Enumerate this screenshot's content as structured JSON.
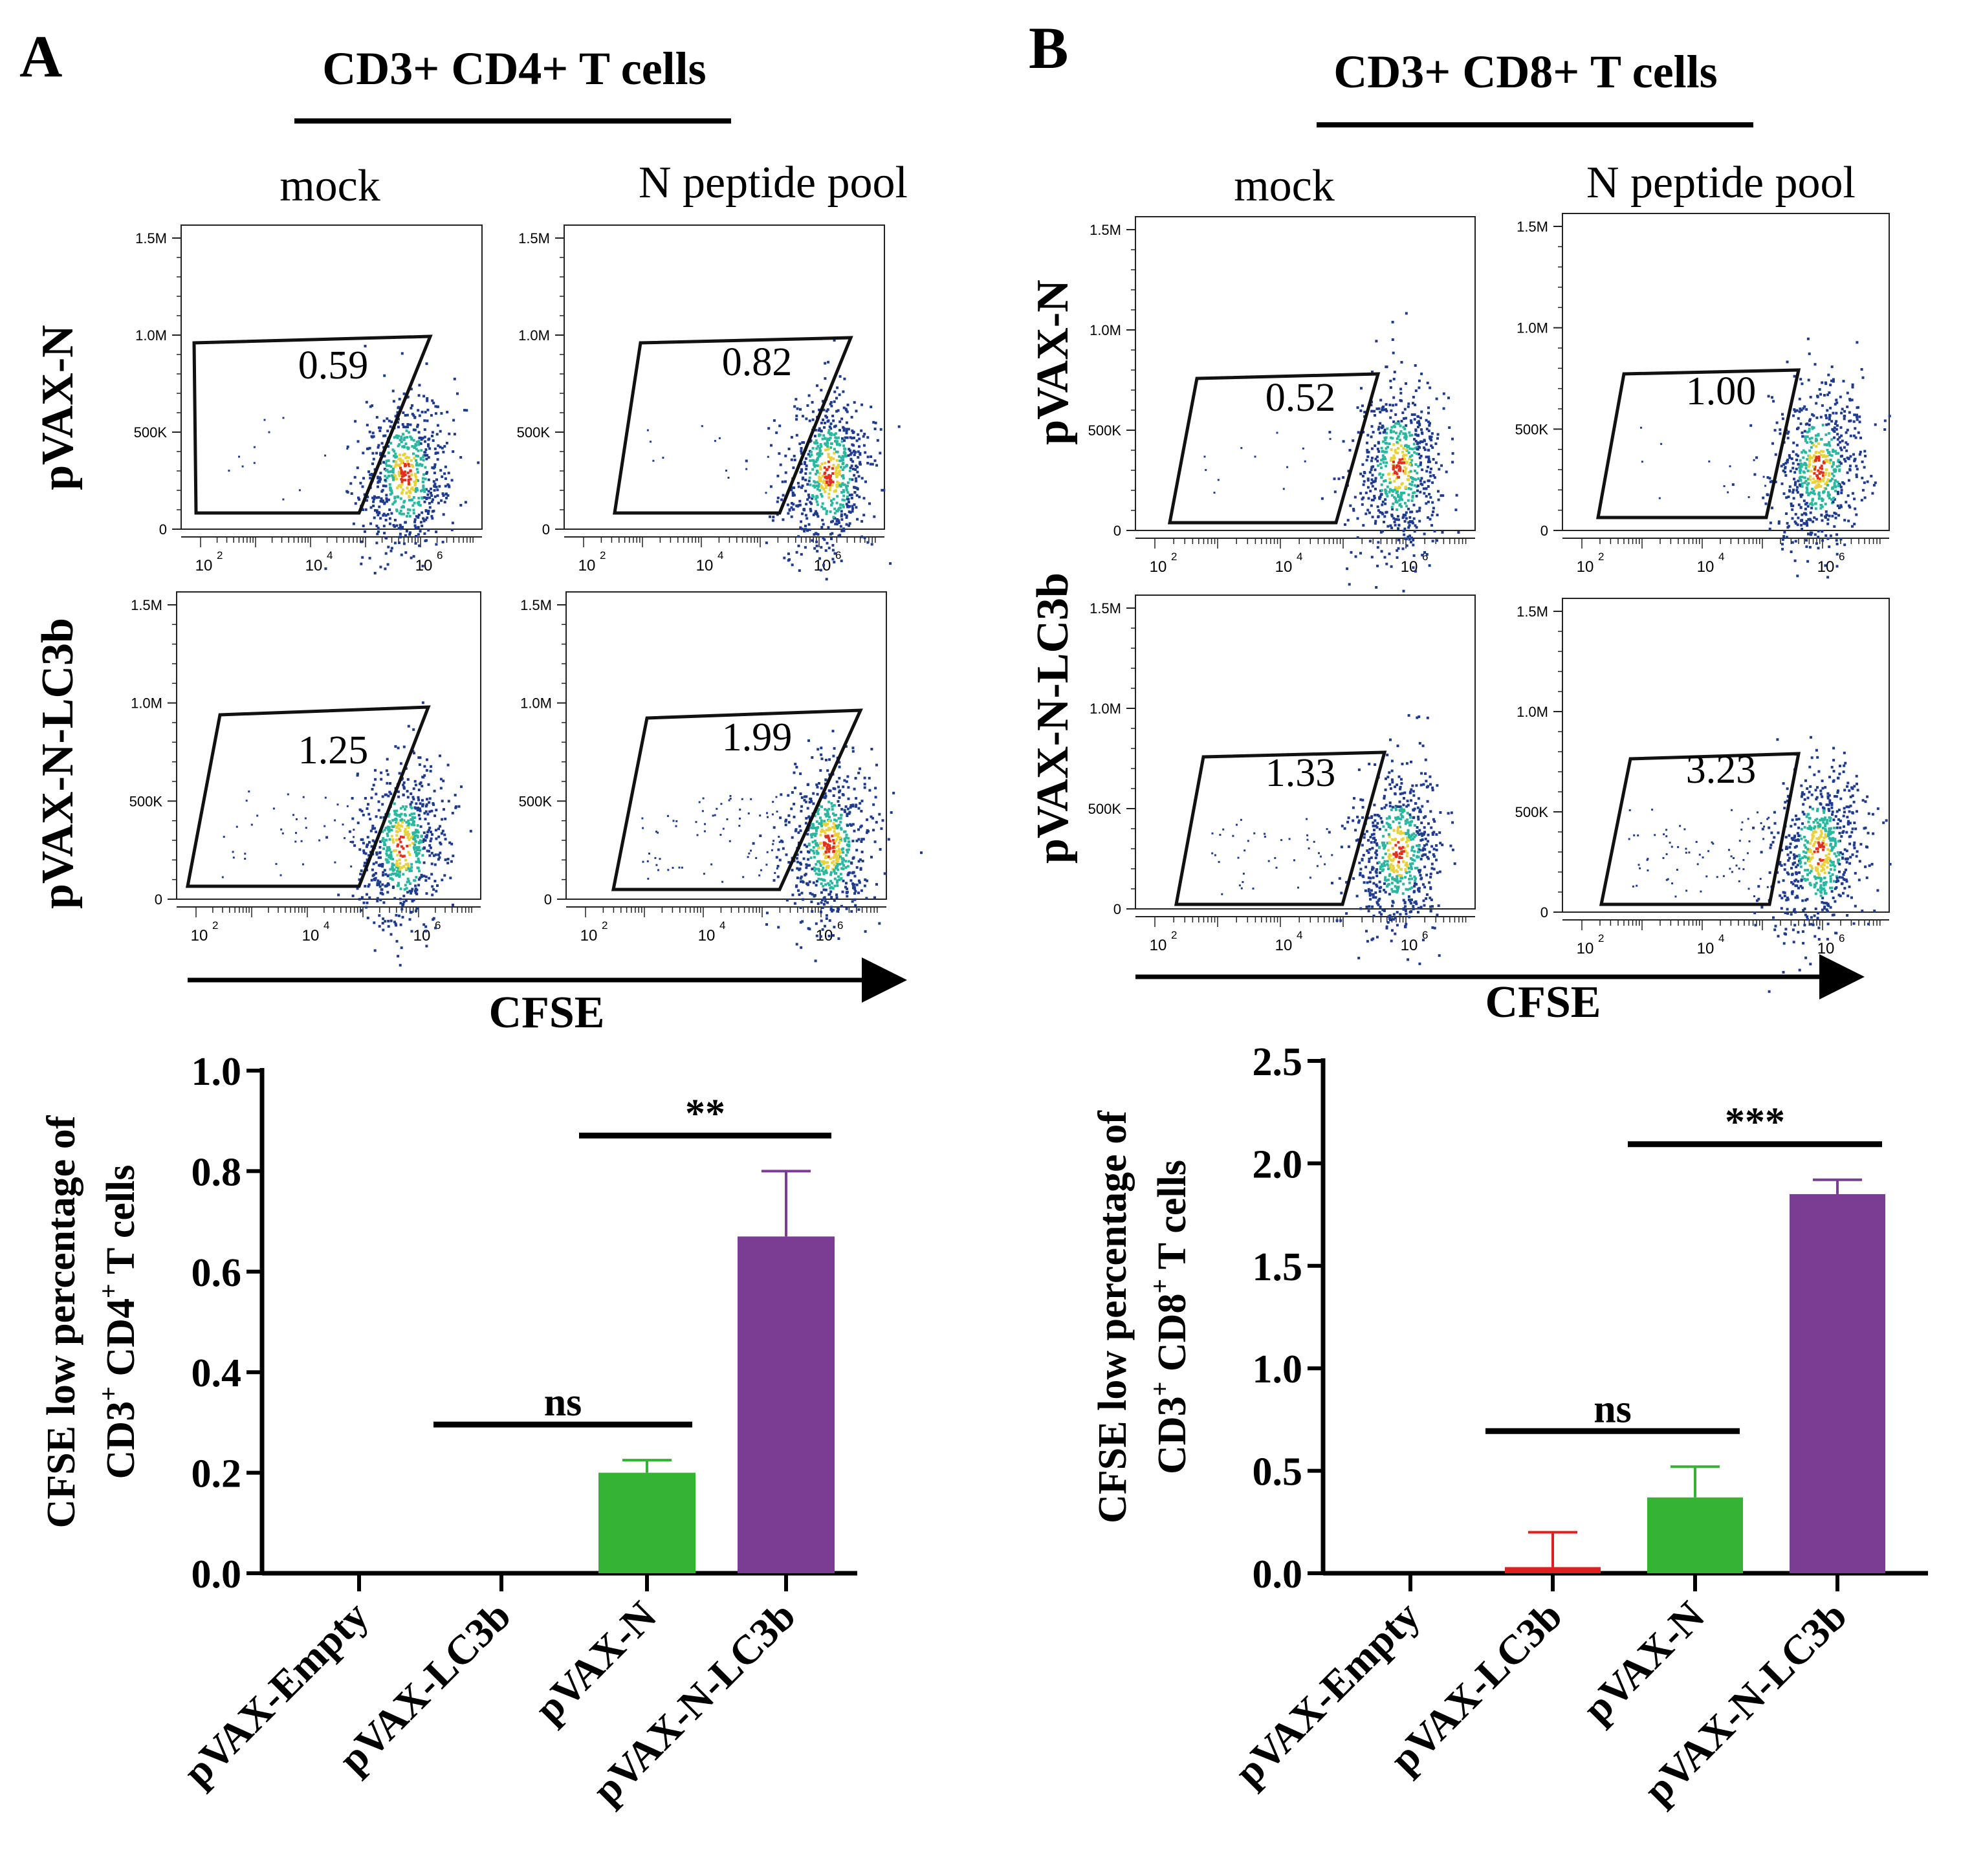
{
  "panel_a": {
    "letter": "A",
    "title": "CD3+ CD4+ T cells",
    "col_labels": [
      "mock",
      "N peptide pool"
    ],
    "row_labels": [
      "pVAX-N",
      "pVAX-N-LC3b"
    ],
    "x_axis_label": "CFSE",
    "gate_values": [
      "0.59",
      "0.82",
      "1.25",
      "1.99"
    ]
  },
  "panel_b": {
    "letter": "B",
    "title": "CD3+ CD8+ T cells",
    "col_labels": [
      "mock",
      "N peptide pool"
    ],
    "row_labels": [
      "pVAX-N",
      "pVAX-N-LC3b"
    ],
    "x_axis_label": "CFSE",
    "gate_values": [
      "0.52",
      "1.00",
      "1.33",
      "3.23"
    ]
  },
  "flow_axes": {
    "y_ticks": [
      "1.5M",
      "1.0M",
      "500K",
      "0"
    ],
    "x_ticks": [
      "10",
      "10",
      "10"
    ],
    "x_exponents": [
      "2",
      "4",
      "6"
    ]
  },
  "colors": {
    "empty": "#000000",
    "lc3b": "#e02020",
    "n": "#35b335",
    "n_lc3b": "#7b3d93",
    "density_low": "#1f3b8f",
    "density_mid": "#2bb6a0",
    "density_high": "#e8d13a",
    "density_peak": "#e0301e"
  },
  "chart_data": [
    {
      "type": "bar",
      "title": "",
      "ylabel_line1": "CFSE low percentage of",
      "ylabel_line2": "CD3",
      "ylabel_sup1": "+",
      "ylabel_mid": " CD4",
      "ylabel_sup2": "+",
      "ylabel_end": " T cells",
      "xlabel": "",
      "categories": [
        "pVAX-Empty",
        "pVAX-LC3b",
        "pVAX-N",
        "pVAX-N-LC3b"
      ],
      "values": [
        0.0,
        0.0,
        0.2,
        0.67
      ],
      "errors": [
        0.0,
        0.0,
        0.025,
        0.13
      ],
      "ylim": [
        0,
        1.0
      ],
      "yticks": [
        "0.0",
        "0.2",
        "0.4",
        "0.6",
        "0.8",
        "1.0"
      ],
      "ytick_values": [
        0,
        0.2,
        0.4,
        0.6,
        0.8,
        1.0
      ],
      "significance": [
        {
          "from": 1,
          "to": 2,
          "label": "ns"
        },
        {
          "from": 2,
          "to": 3,
          "label": "**"
        }
      ]
    },
    {
      "type": "bar",
      "title": "",
      "ylabel_line1": "CFSE low percentage of",
      "ylabel_line2": "CD3",
      "ylabel_sup1": "+",
      "ylabel_mid": " CD8",
      "ylabel_sup2": "+",
      "ylabel_end": " T cells",
      "xlabel": "",
      "categories": [
        "pVAX-Empty",
        "pVAX-LC3b",
        "pVAX-N",
        "pVAX-N-LC3b"
      ],
      "values": [
        0.0,
        0.03,
        0.37,
        1.85
      ],
      "errors": [
        0.0,
        0.17,
        0.15,
        0.07
      ],
      "ylim": [
        0,
        2.5
      ],
      "yticks": [
        "0.0",
        "0.5",
        "1.0",
        "1.5",
        "2.0",
        "2.5"
      ],
      "ytick_values": [
        0,
        0.5,
        1.0,
        1.5,
        2.0,
        2.5
      ],
      "significance": [
        {
          "from": 1,
          "to": 2,
          "label": "ns"
        },
        {
          "from": 2,
          "to": 3,
          "label": "***"
        }
      ]
    }
  ]
}
